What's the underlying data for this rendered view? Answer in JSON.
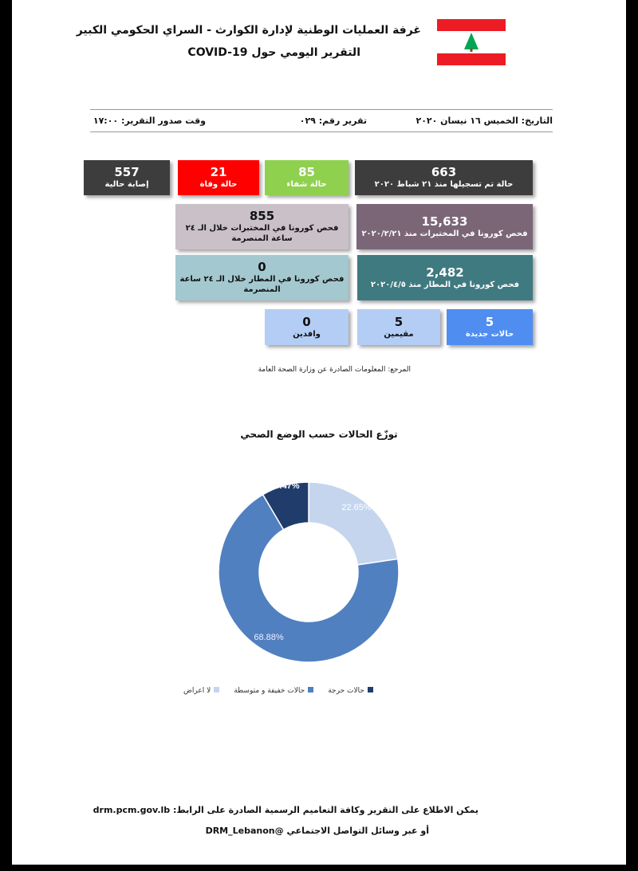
{
  "header": {
    "title": "غرفة العمليات الوطنية لإدارة الكوارث - السراي الحكومي الكبير",
    "subtitle": "التقرير اليومي حول COVID-19",
    "flag_colors": {
      "red": "#ed1c24",
      "cedar": "#00a651"
    }
  },
  "meta": {
    "date": "التاريخ: الخميس ١٦ نيسان ٢٠٢٠",
    "report_no": "تقرير رقم: ٠٢٩",
    "time": "وقت صدور التقرير: ١٧:٠٠"
  },
  "boxes": [
    {
      "value": "557",
      "label": "إصابة حالية",
      "color": "#3d3d3d"
    },
    {
      "value": "21",
      "label": "حالة وفاة",
      "color": "#ff0000"
    },
    {
      "value": "85",
      "label": "حالة شفاء",
      "color": "#8fd14f"
    },
    {
      "value": "663",
      "label": "حالة تم تسجيلها منذ ٢١ شباط ٢٠٢٠",
      "color": "#3d3d3d"
    },
    {
      "value": "855",
      "label": "فحص كورونا في المختبرات خلال الـ ٢٤ ساعة المنصرمة",
      "color": "#c9c0c8"
    },
    {
      "value": "15,633",
      "label": "فحص كورونا في المختبرات منذ ٢٠٢٠/٢/٢١",
      "color": "#7b6678"
    },
    {
      "value": "0",
      "label": "فحص كورونا في المطار خلال الـ ٢٤ ساعة المنصرمة",
      "color": "#a3c8d0"
    },
    {
      "value": "2,482",
      "label": "فحص كورونا في المطار منذ ٢٠٢٠/٤/٥",
      "color": "#3f7a80"
    },
    {
      "value": "0",
      "label": "وافدين",
      "color": "#b3cdf5"
    },
    {
      "value": "5",
      "label": "مقيمين",
      "color": "#b3cdf5"
    },
    {
      "value": "5",
      "label": "حالات جديدة",
      "color": "#4f8df0"
    }
  ],
  "source": "المرجع: المعلومات الصادرة عن وزارة الصحة العامة",
  "chart_data": {
    "type": "pie",
    "donut": true,
    "title": "توزّع الحالات حسب الوضع الصحي",
    "categories": [
      "لا اعراض",
      "حالات خفيفة و متوسطة",
      "حالات حرجة"
    ],
    "values": [
      22.65,
      68.88,
      8.47
    ],
    "labels": [
      "22.65%",
      "68.88%",
      "8.47%"
    ],
    "colors": [
      "#c5d5ee",
      "#5080c0",
      "#1f3c6b"
    ],
    "legend": "bottom"
  },
  "footer": {
    "line1": "يمكن الاطلاع على التقرير وكافة التعاميم الرسمية الصادرة على الرابط: drm.pcm.gov.lb",
    "line2": "أو عبر وسائل التواصل الاجتماعي @DRM_Lebanon"
  }
}
